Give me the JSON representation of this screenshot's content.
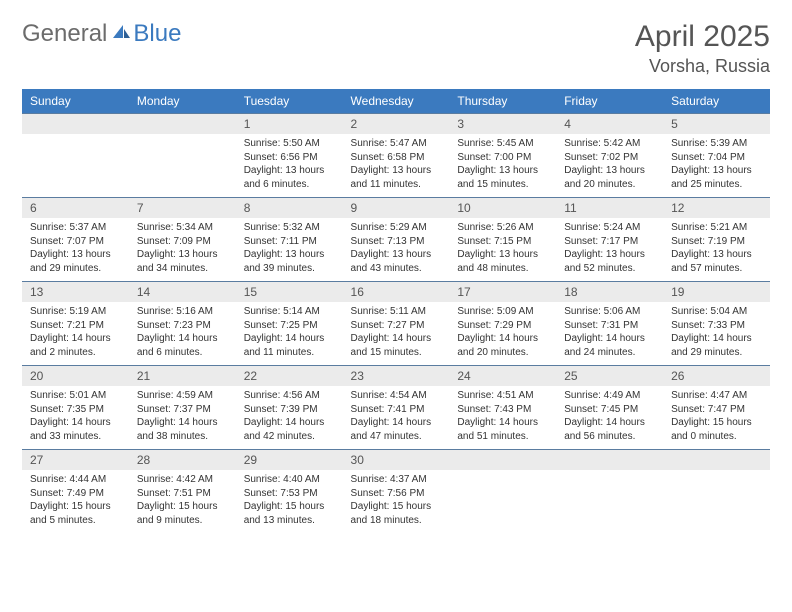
{
  "brand": {
    "part1": "General",
    "part2": "Blue"
  },
  "title": "April 2025",
  "location": "Vorsha, Russia",
  "colors": {
    "header_bg": "#3b7abf",
    "header_text": "#ffffff",
    "daynum_bg": "#ebebeb",
    "text_gray": "#555555",
    "body_text": "#333333",
    "row_border": "#5a7ca0",
    "logo_gray": "#6c6c6c",
    "logo_blue": "#3b7abf",
    "page_bg": "#ffffff"
  },
  "day_names": [
    "Sunday",
    "Monday",
    "Tuesday",
    "Wednesday",
    "Thursday",
    "Friday",
    "Saturday"
  ],
  "weeks": [
    [
      null,
      null,
      {
        "n": "1",
        "sr": "5:50 AM",
        "ss": "6:56 PM",
        "dl": "13 hours and 6 minutes."
      },
      {
        "n": "2",
        "sr": "5:47 AM",
        "ss": "6:58 PM",
        "dl": "13 hours and 11 minutes."
      },
      {
        "n": "3",
        "sr": "5:45 AM",
        "ss": "7:00 PM",
        "dl": "13 hours and 15 minutes."
      },
      {
        "n": "4",
        "sr": "5:42 AM",
        "ss": "7:02 PM",
        "dl": "13 hours and 20 minutes."
      },
      {
        "n": "5",
        "sr": "5:39 AM",
        "ss": "7:04 PM",
        "dl": "13 hours and 25 minutes."
      }
    ],
    [
      {
        "n": "6",
        "sr": "5:37 AM",
        "ss": "7:07 PM",
        "dl": "13 hours and 29 minutes."
      },
      {
        "n": "7",
        "sr": "5:34 AM",
        "ss": "7:09 PM",
        "dl": "13 hours and 34 minutes."
      },
      {
        "n": "8",
        "sr": "5:32 AM",
        "ss": "7:11 PM",
        "dl": "13 hours and 39 minutes."
      },
      {
        "n": "9",
        "sr": "5:29 AM",
        "ss": "7:13 PM",
        "dl": "13 hours and 43 minutes."
      },
      {
        "n": "10",
        "sr": "5:26 AM",
        "ss": "7:15 PM",
        "dl": "13 hours and 48 minutes."
      },
      {
        "n": "11",
        "sr": "5:24 AM",
        "ss": "7:17 PM",
        "dl": "13 hours and 52 minutes."
      },
      {
        "n": "12",
        "sr": "5:21 AM",
        "ss": "7:19 PM",
        "dl": "13 hours and 57 minutes."
      }
    ],
    [
      {
        "n": "13",
        "sr": "5:19 AM",
        "ss": "7:21 PM",
        "dl": "14 hours and 2 minutes."
      },
      {
        "n": "14",
        "sr": "5:16 AM",
        "ss": "7:23 PM",
        "dl": "14 hours and 6 minutes."
      },
      {
        "n": "15",
        "sr": "5:14 AM",
        "ss": "7:25 PM",
        "dl": "14 hours and 11 minutes."
      },
      {
        "n": "16",
        "sr": "5:11 AM",
        "ss": "7:27 PM",
        "dl": "14 hours and 15 minutes."
      },
      {
        "n": "17",
        "sr": "5:09 AM",
        "ss": "7:29 PM",
        "dl": "14 hours and 20 minutes."
      },
      {
        "n": "18",
        "sr": "5:06 AM",
        "ss": "7:31 PM",
        "dl": "14 hours and 24 minutes."
      },
      {
        "n": "19",
        "sr": "5:04 AM",
        "ss": "7:33 PM",
        "dl": "14 hours and 29 minutes."
      }
    ],
    [
      {
        "n": "20",
        "sr": "5:01 AM",
        "ss": "7:35 PM",
        "dl": "14 hours and 33 minutes."
      },
      {
        "n": "21",
        "sr": "4:59 AM",
        "ss": "7:37 PM",
        "dl": "14 hours and 38 minutes."
      },
      {
        "n": "22",
        "sr": "4:56 AM",
        "ss": "7:39 PM",
        "dl": "14 hours and 42 minutes."
      },
      {
        "n": "23",
        "sr": "4:54 AM",
        "ss": "7:41 PM",
        "dl": "14 hours and 47 minutes."
      },
      {
        "n": "24",
        "sr": "4:51 AM",
        "ss": "7:43 PM",
        "dl": "14 hours and 51 minutes."
      },
      {
        "n": "25",
        "sr": "4:49 AM",
        "ss": "7:45 PM",
        "dl": "14 hours and 56 minutes."
      },
      {
        "n": "26",
        "sr": "4:47 AM",
        "ss": "7:47 PM",
        "dl": "15 hours and 0 minutes."
      }
    ],
    [
      {
        "n": "27",
        "sr": "4:44 AM",
        "ss": "7:49 PM",
        "dl": "15 hours and 5 minutes."
      },
      {
        "n": "28",
        "sr": "4:42 AM",
        "ss": "7:51 PM",
        "dl": "15 hours and 9 minutes."
      },
      {
        "n": "29",
        "sr": "4:40 AM",
        "ss": "7:53 PM",
        "dl": "15 hours and 13 minutes."
      },
      {
        "n": "30",
        "sr": "4:37 AM",
        "ss": "7:56 PM",
        "dl": "15 hours and 18 minutes."
      },
      null,
      null,
      null
    ]
  ],
  "labels": {
    "sunrise": "Sunrise:",
    "sunset": "Sunset:",
    "daylight": "Daylight:"
  }
}
